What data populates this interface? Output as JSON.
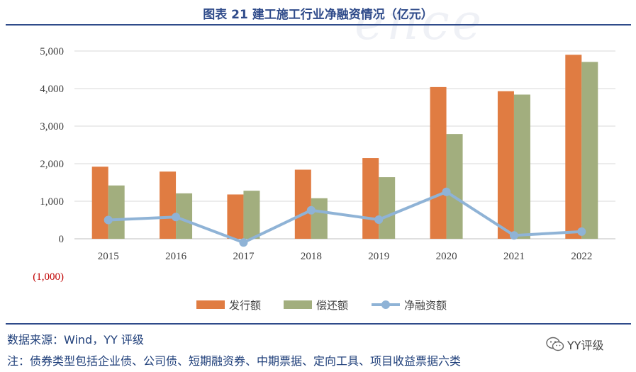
{
  "chart_data": {
    "type": "bar",
    "title": "图表 21 建工施工行业净融资情况（亿元）",
    "categories": [
      "2015",
      "2016",
      "2017",
      "2018",
      "2019",
      "2020",
      "2021",
      "2022"
    ],
    "series": [
      {
        "name": "发行额",
        "type": "bar",
        "color": "#E07C42",
        "values": [
          1920,
          1790,
          1180,
          1840,
          2150,
          4040,
          3930,
          4900
        ]
      },
      {
        "name": "偿还额",
        "type": "bar",
        "color": "#A2AE7E",
        "values": [
          1420,
          1210,
          1280,
          1080,
          1640,
          2790,
          3840,
          4710
        ]
      },
      {
        "name": "净融资额",
        "type": "line",
        "color": "#8FB3D6",
        "values": [
          500,
          580,
          -100,
          760,
          510,
          1250,
          90,
          190
        ]
      }
    ],
    "y_ticks": [
      {
        "value": 5000,
        "label": "5,000",
        "negative": false
      },
      {
        "value": 4000,
        "label": "4,000",
        "negative": false
      },
      {
        "value": 3000,
        "label": "3,000",
        "negative": false
      },
      {
        "value": 2000,
        "label": "2,000",
        "negative": false
      },
      {
        "value": 1000,
        "label": "1,000",
        "negative": false
      },
      {
        "value": 0,
        "label": "0",
        "negative": false
      },
      {
        "value": -1000,
        "label": "(1,000)",
        "negative": true
      }
    ],
    "ylim": [
      -1000,
      5000
    ],
    "xlabel": "",
    "ylabel": "",
    "legend_position": "bottom",
    "grid": true,
    "negative_label_color": "#C00000"
  },
  "footer": {
    "source": "数据来源：Wind，YY 评级",
    "note": "注：债券类型包括企业债、公司债、短期融资券、中期票据、定向工具、项目收益票据六类"
  },
  "brand": {
    "label": "YY评级"
  },
  "colors": {
    "title": "#2f4b8a",
    "rule": "#2f4b8a",
    "footer_text": "#1f3f7a"
  }
}
